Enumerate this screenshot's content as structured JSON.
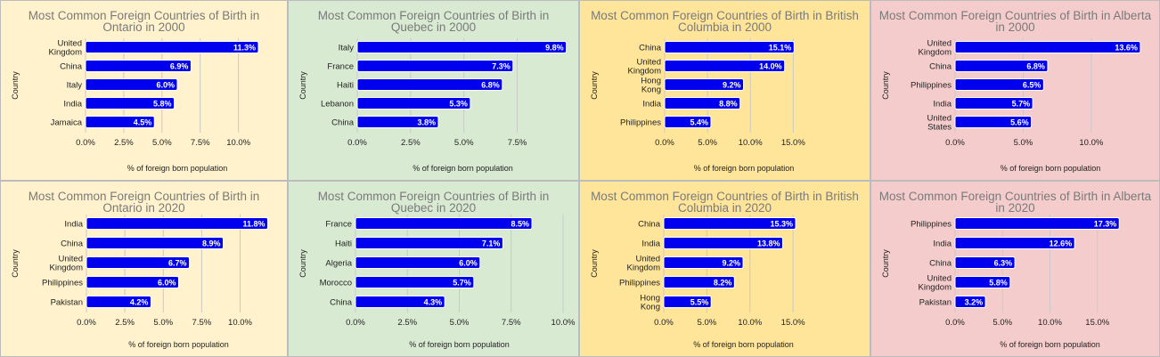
{
  "colors": {
    "bar": "#0000ee",
    "bar_edge": "#ffffff",
    "grid": "#c9c9c9",
    "title": "#7a7a7a"
  },
  "chart_data": [
    {
      "type": "bar",
      "orientation": "horizontal",
      "bg": "#fff2cc",
      "title": "Most Common Foreign Countries of Birth in Ontario in 2000",
      "xlabel": "% of foreign born population",
      "ylabel": "Country",
      "xlim": [
        0,
        12
      ],
      "xticks": [
        "0.0%",
        "2.5%",
        "5.0%",
        "7.5%",
        "10.0%"
      ],
      "xtick_values": [
        0,
        2.5,
        5,
        7.5,
        10
      ],
      "grid": true,
      "categories": [
        "United Kingdom",
        "China",
        "Italy",
        "India",
        "Jamaica"
      ],
      "values": [
        11.3,
        6.9,
        6.0,
        5.8,
        4.5
      ],
      "value_labels": [
        "11.3%",
        "6.9%",
        "6.0%",
        "5.8%",
        "4.5%"
      ]
    },
    {
      "type": "bar",
      "orientation": "horizontal",
      "bg": "#d9ead3",
      "title": "Most Common Foreign Countries of Birth in Quebec in 2000",
      "xlabel": "% of foreign born population",
      "ylabel": "Country",
      "xlim": [
        0,
        9.9
      ],
      "xticks": [
        "0.0%",
        "2.5%",
        "5.0%",
        "7.5%"
      ],
      "xtick_values": [
        0,
        2.5,
        5,
        7.5
      ],
      "grid": true,
      "categories": [
        "Italy",
        "France",
        "Haiti",
        "Lebanon",
        "China"
      ],
      "values": [
        9.8,
        7.3,
        6.8,
        5.3,
        3.8
      ],
      "value_labels": [
        "9.8%",
        "7.3%",
        "6.8%",
        "5.3%",
        "3.8%"
      ]
    },
    {
      "type": "bar",
      "orientation": "horizontal",
      "bg": "#ffe599",
      "title": "Most Common Foreign Countries of Birth in British Columbia in 2000",
      "xlabel": "% of foreign born population",
      "ylabel": "Country",
      "xlim": [
        0,
        18.5
      ],
      "xticks": [
        "0.0%",
        "5.0%",
        "10.0%",
        "15.0%"
      ],
      "xtick_values": [
        0,
        5,
        10,
        15
      ],
      "grid": true,
      "categories": [
        "China",
        "United Kingdom",
        "Hong Kong",
        "India",
        "Philippines"
      ],
      "values": [
        15.1,
        14.0,
        9.2,
        8.8,
        5.4
      ],
      "value_labels": [
        "15.1%",
        "14.0%",
        "9.2%",
        "8.8%",
        "5.4%"
      ]
    },
    {
      "type": "bar",
      "orientation": "horizontal",
      "bg": "#f4cccc",
      "title": "Most Common Foreign Countries of Birth in Alberta in 2000",
      "xlabel": "% of foreign born population",
      "ylabel": "Country",
      "xlim": [
        0,
        14
      ],
      "xticks": [
        "0.0%",
        "5.0%",
        "10.0%"
      ],
      "xtick_values": [
        0,
        5,
        10
      ],
      "grid": true,
      "categories": [
        "United Kingdom",
        "China",
        "Philippines",
        "India",
        "United States"
      ],
      "values": [
        13.6,
        6.8,
        6.5,
        5.7,
        5.6
      ],
      "value_labels": [
        "13.6%",
        "6.8%",
        "6.5%",
        "5.7%",
        "5.6%"
      ]
    },
    {
      "type": "bar",
      "orientation": "horizontal",
      "bg": "#fff2cc",
      "title": "Most Common Foreign Countries of Birth in Ontario in 2020",
      "xlabel": "% of foreign born population",
      "ylabel": "Country",
      "xlim": [
        0,
        12
      ],
      "xticks": [
        "0.0%",
        "2.5%",
        "5.0%",
        "7.5%",
        "10.0%"
      ],
      "xtick_values": [
        0,
        2.5,
        5,
        7.5,
        10
      ],
      "grid": true,
      "categories": [
        "India",
        "China",
        "United Kingdom",
        "Philippines",
        "Pakistan"
      ],
      "values": [
        11.8,
        8.9,
        6.7,
        6.0,
        4.2
      ],
      "value_labels": [
        "11.8%",
        "8.9%",
        "6.7%",
        "6.0%",
        "4.2%"
      ]
    },
    {
      "type": "bar",
      "orientation": "horizontal",
      "bg": "#d9ead3",
      "title": "Most Common Foreign Countries of Birth in Quebec in 2020",
      "xlabel": "% of foreign born population",
      "ylabel": "Country",
      "xlim": [
        0,
        10
      ],
      "xticks": [
        "0.0%",
        "2.5%",
        "5.0%",
        "7.5%",
        "10.0%"
      ],
      "xtick_values": [
        0,
        2.5,
        5,
        7.5,
        10
      ],
      "grid": true,
      "categories": [
        "France",
        "Haiti",
        "Algeria",
        "Morocco",
        "China"
      ],
      "values": [
        8.5,
        7.1,
        6.0,
        5.7,
        4.3
      ],
      "value_labels": [
        "8.5%",
        "7.1%",
        "6.0%",
        "5.7%",
        "4.3%"
      ]
    },
    {
      "type": "bar",
      "orientation": "horizontal",
      "bg": "#ffe599",
      "title": "Most Common Foreign Countries of Birth in British Columbia in 2020",
      "xlabel": "% of foreign born population",
      "ylabel": "Country",
      "xlim": [
        0,
        18.5
      ],
      "xticks": [
        "0.0%",
        "5.0%",
        "10.0%",
        "15.0%"
      ],
      "xtick_values": [
        0,
        5,
        10,
        15
      ],
      "grid": true,
      "categories": [
        "China",
        "India",
        "United Kingdom",
        "Philippines",
        "Hong Kong"
      ],
      "values": [
        15.3,
        13.8,
        9.2,
        8.2,
        5.5
      ],
      "value_labels": [
        "15.3%",
        "13.8%",
        "9.2%",
        "8.2%",
        "5.5%"
      ]
    },
    {
      "type": "bar",
      "orientation": "horizontal",
      "bg": "#f4cccc",
      "title": "Most Common Foreign Countries of Birth in Alberta in 2020",
      "xlabel": "% of foreign born population",
      "ylabel": "Country",
      "xlim": [
        0,
        20
      ],
      "xticks": [
        "0.0%",
        "5.0%",
        "10.0%",
        "15.0%"
      ],
      "xtick_values": [
        0,
        5,
        10,
        15
      ],
      "grid": true,
      "categories": [
        "Philippines",
        "India",
        "China",
        "United Kingdom",
        "Pakistan"
      ],
      "values": [
        17.3,
        12.6,
        6.3,
        5.8,
        3.2
      ],
      "value_labels": [
        "17.3%",
        "12.6%",
        "6.3%",
        "5.8%",
        "3.2%"
      ]
    }
  ]
}
